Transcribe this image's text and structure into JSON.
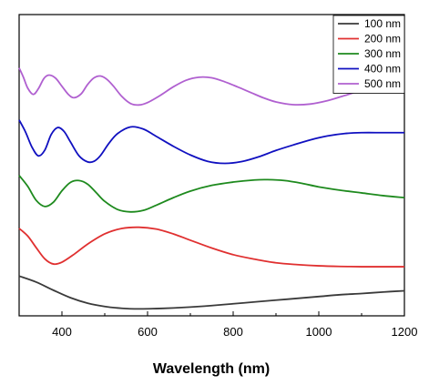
{
  "chart_data": {
    "type": "line",
    "title": "",
    "xlabel": "Wavelength (nm)",
    "ylabel": "",
    "xlim": [
      300,
      1200
    ],
    "ylim": [
      0,
      1
    ],
    "grid": false,
    "legend_position": "top-right",
    "x_ticks": [
      400,
      600,
      800,
      1000,
      1200
    ],
    "x_tick_labels": [
      "400",
      "600",
      "800",
      "1000",
      "1200"
    ],
    "series": [
      {
        "name": "100 nm",
        "color": "#3a3a3a",
        "x": [
          300,
          340,
          380,
          420,
          460,
          500,
          540,
          580,
          620,
          660,
          700,
          750,
          800,
          850,
          900,
          950,
          1000,
          1050,
          1100,
          1150,
          1200
        ],
        "y": [
          0.132,
          0.112,
          0.085,
          0.06,
          0.042,
          0.031,
          0.025,
          0.023,
          0.024,
          0.026,
          0.029,
          0.034,
          0.04,
          0.046,
          0.052,
          0.058,
          0.064,
          0.07,
          0.074,
          0.079,
          0.083
        ]
      },
      {
        "name": "200 nm",
        "color": "#e03030",
        "x": [
          300,
          320,
          340,
          360,
          380,
          400,
          430,
          460,
          500,
          540,
          580,
          620,
          660,
          700,
          750,
          800,
          850,
          900,
          950,
          1000,
          1050,
          1100,
          1150,
          1200
        ],
        "y": [
          0.29,
          0.265,
          0.226,
          0.189,
          0.172,
          0.178,
          0.206,
          0.238,
          0.272,
          0.29,
          0.294,
          0.288,
          0.272,
          0.251,
          0.225,
          0.203,
          0.188,
          0.176,
          0.17,
          0.166,
          0.164,
          0.163,
          0.163,
          0.163
        ]
      },
      {
        "name": "300 nm",
        "color": "#1e8a1e",
        "x": [
          300,
          320,
          340,
          360,
          380,
          400,
          420,
          440,
          460,
          480,
          500,
          530,
          560,
          590,
          620,
          660,
          700,
          750,
          800,
          850,
          880,
          920,
          960,
          1000,
          1050,
          1100,
          1150,
          1200
        ],
        "y": [
          0.466,
          0.43,
          0.383,
          0.363,
          0.377,
          0.415,
          0.443,
          0.449,
          0.437,
          0.409,
          0.38,
          0.353,
          0.345,
          0.35,
          0.367,
          0.392,
          0.414,
          0.433,
          0.444,
          0.451,
          0.452,
          0.449,
          0.44,
          0.428,
          0.417,
          0.408,
          0.399,
          0.392
        ]
      },
      {
        "name": "400 nm",
        "color": "#1010c0",
        "x": [
          300,
          315,
          330,
          345,
          360,
          375,
          390,
          405,
          420,
          440,
          460,
          475,
          490,
          510,
          530,
          560,
          590,
          620,
          660,
          700,
          740,
          780,
          820,
          860,
          900,
          940,
          980,
          1020,
          1060,
          1100,
          1150,
          1200
        ],
        "y": [
          0.65,
          0.61,
          0.56,
          0.531,
          0.55,
          0.602,
          0.625,
          0.612,
          0.577,
          0.531,
          0.511,
          0.513,
          0.532,
          0.573,
          0.605,
          0.627,
          0.62,
          0.596,
          0.563,
          0.534,
          0.513,
          0.506,
          0.512,
          0.528,
          0.549,
          0.567,
          0.584,
          0.597,
          0.605,
          0.608,
          0.608,
          0.608
        ]
      },
      {
        "name": "500 nm",
        "color": "#b060d0",
        "x": [
          300,
          310,
          320,
          333,
          345,
          358,
          370,
          385,
          400,
          415,
          428,
          445,
          460,
          475,
          490,
          505,
          520,
          540,
          560,
          580,
          600,
          630,
          660,
          690,
          720,
          750,
          780,
          810,
          840,
          870,
          900,
          940,
          980,
          1020,
          1060,
          1100,
          1150,
          1200
        ],
        "y": [
          0.823,
          0.792,
          0.756,
          0.735,
          0.754,
          0.788,
          0.799,
          0.789,
          0.762,
          0.735,
          0.724,
          0.737,
          0.768,
          0.79,
          0.796,
          0.785,
          0.763,
          0.728,
          0.705,
          0.7,
          0.708,
          0.732,
          0.76,
          0.782,
          0.792,
          0.79,
          0.777,
          0.76,
          0.742,
          0.724,
          0.71,
          0.701,
          0.703,
          0.714,
          0.731,
          0.748,
          0.766,
          0.782
        ]
      }
    ]
  }
}
